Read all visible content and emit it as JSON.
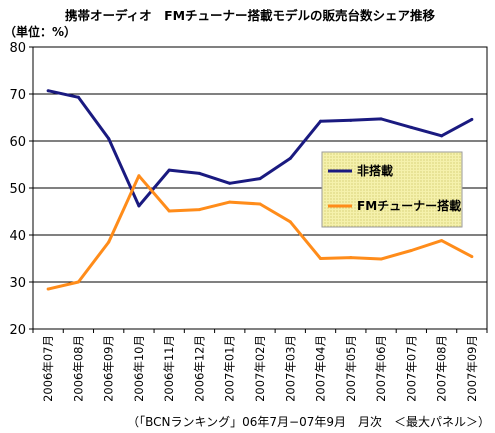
{
  "chart_data": {
    "type": "line",
    "title": "携帯オーディオ　FMチューナー搭載モデルの販売台数シェア推移",
    "unit_label": "（単位：%）",
    "ylim": [
      20,
      80
    ],
    "yticks": [
      20,
      30,
      40,
      50,
      60,
      70,
      80
    ],
    "grid": true,
    "legend_position": "right",
    "categories": [
      "2006年07月",
      "2006年08月",
      "2006年09月",
      "2006年10月",
      "2006年11月",
      "2006年12月",
      "2007年01月",
      "2007年02月",
      "2007年03月",
      "2007年04月",
      "2007年05月",
      "2007年06月",
      "2007年07月",
      "2007年08月",
      "2007年09月"
    ],
    "series": [
      {
        "name": "非搭載",
        "color": "#1a1a80",
        "values": [
          70.7,
          69.3,
          60.5,
          46.2,
          53.8,
          53.1,
          51.0,
          52.0,
          56.3,
          64.2,
          64.4,
          64.7,
          62.9,
          61.1,
          64.6
        ]
      },
      {
        "name": "FMチューナー搭載",
        "color": "#ff8c1a",
        "values": [
          28.5,
          30.0,
          38.5,
          52.6,
          45.1,
          45.4,
          47.0,
          46.6,
          42.8,
          35.0,
          35.2,
          34.9,
          36.7,
          38.8,
          35.4
        ]
      }
    ],
    "source_note": "（「BCNランキング」06年7月−07年9月　月次　＜最大パネル＞）",
    "legend_bg": "#f0ec9c"
  }
}
